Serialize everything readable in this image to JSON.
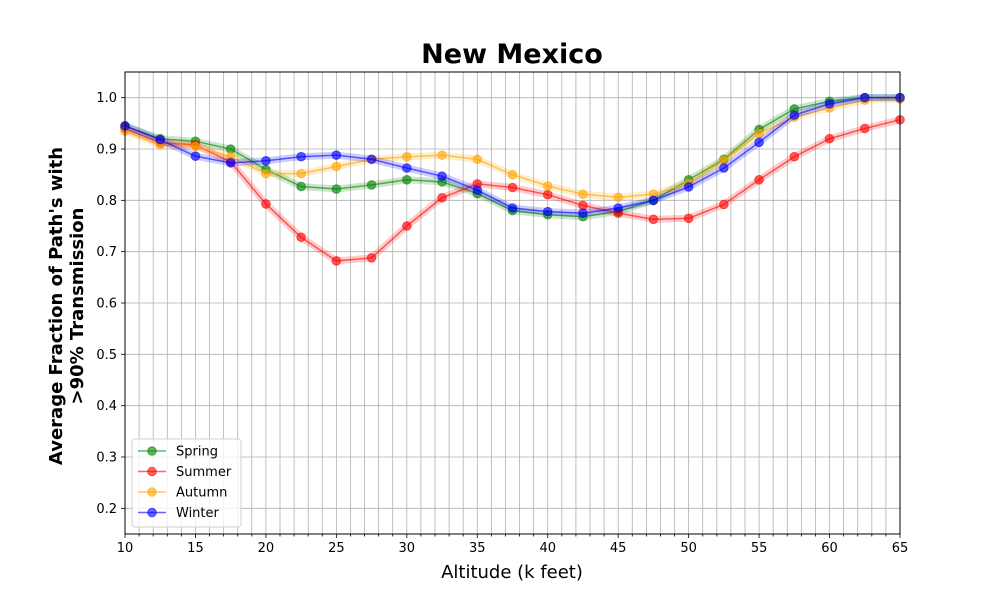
{
  "chart_data": {
    "type": "line",
    "title": "New Mexico",
    "xlabel": "Altitude (k feet)",
    "ylabel_line1": "Average Fraction of Path's with",
    "ylabel_line2": ">90% Transmission",
    "xlim": [
      10,
      65
    ],
    "ylim": [
      0.15,
      1.05
    ],
    "x_major_ticks": [
      10,
      15,
      20,
      25,
      30,
      35,
      40,
      45,
      50,
      55,
      60,
      65
    ],
    "x_minor_step": 1,
    "y_ticks": [
      0.2,
      0.3,
      0.4,
      0.5,
      0.6,
      0.7,
      0.8,
      0.9,
      1.0
    ],
    "y_tick_labels": [
      "0.2",
      "0.3",
      "0.4",
      "0.5",
      "0.6",
      "0.7",
      "0.8",
      "0.9",
      "1.0"
    ],
    "grid": true,
    "legend_position": "lower-left",
    "x": [
      10,
      12.5,
      15,
      17.5,
      20,
      22.5,
      25,
      27.5,
      30,
      32.5,
      35,
      37.5,
      40,
      42.5,
      45,
      47.5,
      50,
      52.5,
      55,
      57.5,
      60,
      62.5,
      65
    ],
    "series": [
      {
        "name": "Spring",
        "color": "#008000",
        "values": [
          0.945,
          0.92,
          0.915,
          0.9,
          0.86,
          0.827,
          0.822,
          0.83,
          0.84,
          0.836,
          0.813,
          0.78,
          0.772,
          0.768,
          0.778,
          0.8,
          0.84,
          0.88,
          0.938,
          0.978,
          0.993,
          1.0,
          1.0
        ]
      },
      {
        "name": "Summer",
        "color": "#ff0000",
        "values": [
          0.94,
          0.912,
          0.908,
          0.875,
          0.793,
          0.728,
          0.682,
          0.688,
          0.75,
          0.805,
          0.832,
          0.825,
          0.811,
          0.79,
          0.775,
          0.763,
          0.765,
          0.792,
          0.84,
          0.885,
          0.92,
          0.94,
          0.957
        ]
      },
      {
        "name": "Autumn",
        "color": "#ffa500",
        "values": [
          0.935,
          0.908,
          0.905,
          0.885,
          0.852,
          0.852,
          0.866,
          0.88,
          0.885,
          0.888,
          0.88,
          0.85,
          0.828,
          0.812,
          0.806,
          0.812,
          0.833,
          0.878,
          0.93,
          0.962,
          0.98,
          0.995,
          0.997
        ]
      },
      {
        "name": "Winter",
        "color": "#0000ff",
        "values": [
          0.945,
          0.918,
          0.886,
          0.873,
          0.877,
          0.885,
          0.888,
          0.88,
          0.863,
          0.847,
          0.82,
          0.785,
          0.778,
          0.775,
          0.785,
          0.8,
          0.826,
          0.863,
          0.913,
          0.966,
          0.988,
          1.0,
          1.0
        ]
      }
    ]
  }
}
